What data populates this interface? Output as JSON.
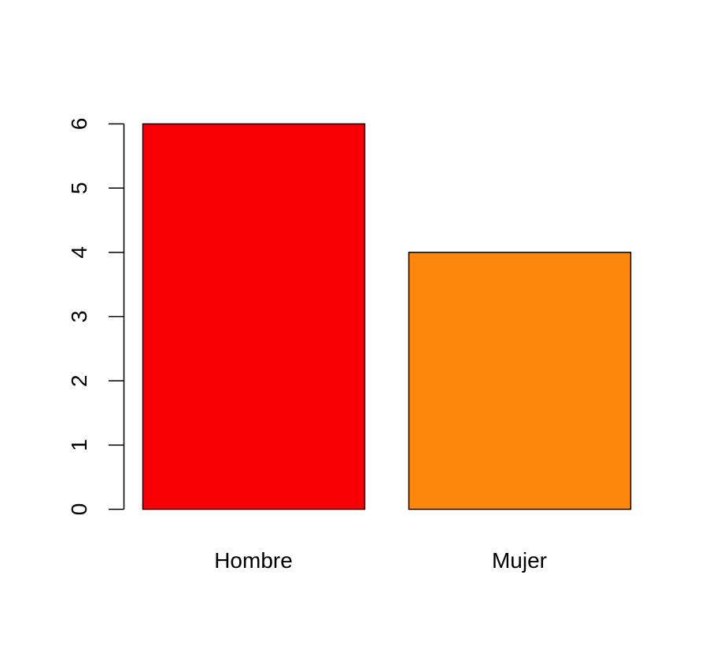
{
  "chart_data": {
    "type": "bar",
    "title": "",
    "xlabel": "",
    "ylabel": "",
    "categories": [
      "Hombre",
      "Mujer"
    ],
    "values": [
      6,
      4
    ],
    "colors": [
      "#f90006",
      "#fd860c"
    ],
    "ylim": [
      0,
      6
    ],
    "yticks": [
      0,
      1,
      2,
      3,
      4,
      5,
      6
    ],
    "grid": false,
    "legend": "none"
  }
}
